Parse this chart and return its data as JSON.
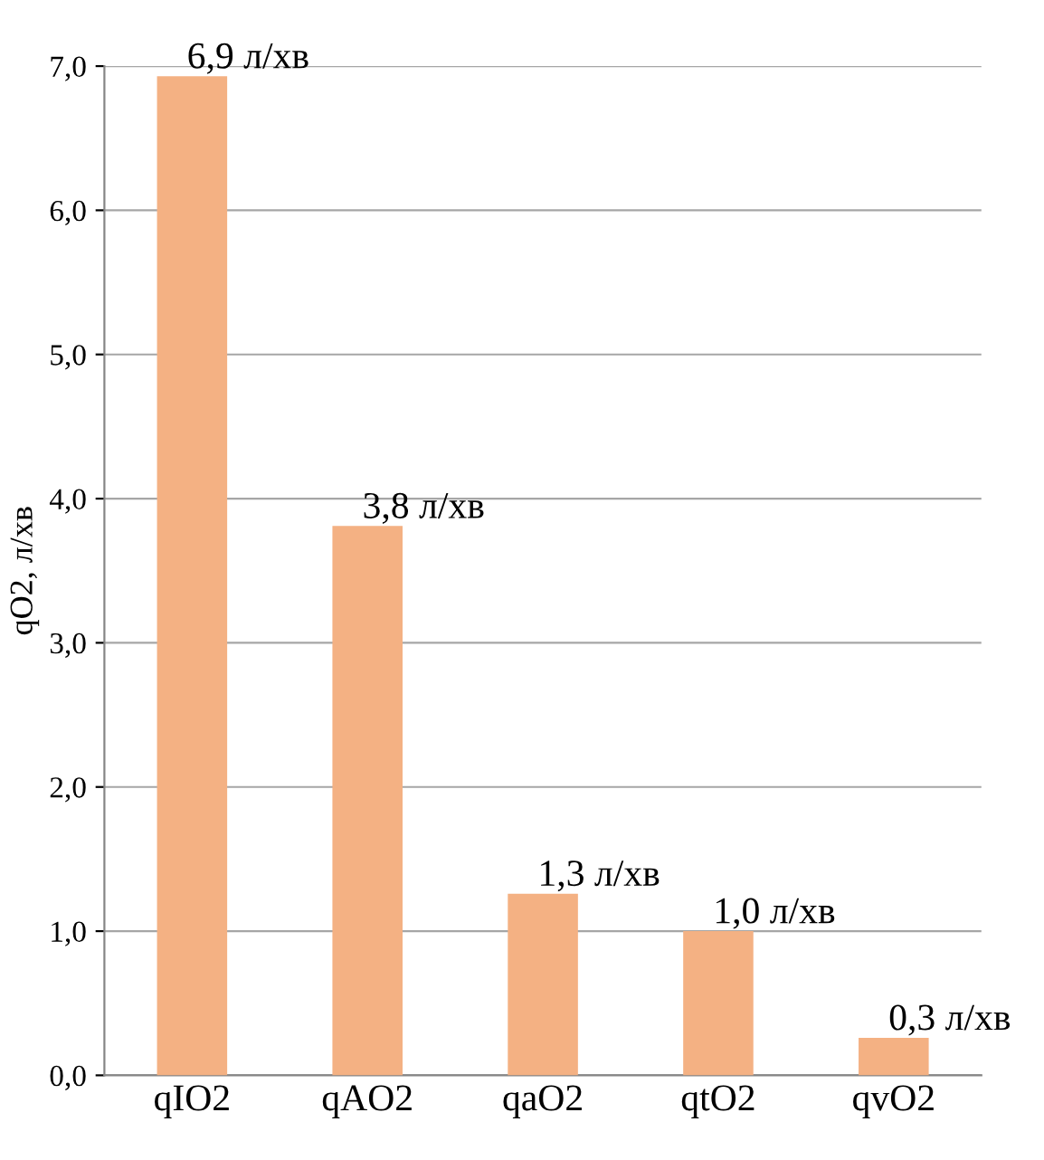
{
  "chart_data": {
    "type": "bar",
    "ylabel": "qO2, л/хв",
    "categories": [
      "qIO2",
      "qAO2",
      "qaO2",
      "qtO2",
      "qvO2"
    ],
    "values": [
      6.93,
      3.81,
      1.26,
      1.0,
      0.26
    ],
    "value_labels": [
      "6,9 л/хв",
      "3,8 л/хв",
      "1,3 л/хв",
      "1,0 л/хв",
      "0,3 л/хв"
    ],
    "color": "#f4b183",
    "ylim": [
      0,
      7
    ],
    "yticks": [
      {
        "value": 0,
        "label": "0,0"
      },
      {
        "value": 1,
        "label": "1,0"
      },
      {
        "value": 2,
        "label": "2,0"
      },
      {
        "value": 3,
        "label": "3,0"
      },
      {
        "value": 4,
        "label": "4,0"
      },
      {
        "value": 5,
        "label": "5,0"
      },
      {
        "value": 6,
        "label": "6,0"
      },
      {
        "value": 7,
        "label": "7,0"
      }
    ],
    "grid": "y",
    "legend": false
  }
}
